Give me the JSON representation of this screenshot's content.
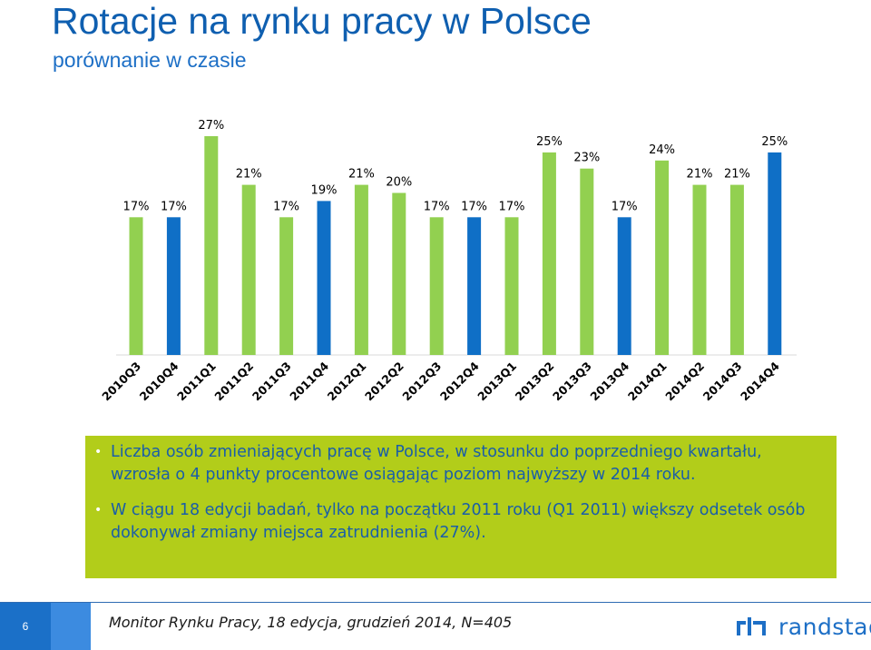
{
  "header": {
    "title": "Rotacje na rynku pracy w Polsce",
    "subtitle": "porównanie w czasie"
  },
  "chart_data": {
    "type": "bar",
    "categories": [
      "2010Q3",
      "2010Q4",
      "2011Q1",
      "2011Q2",
      "2011Q3",
      "2011Q4",
      "2012Q1",
      "2012Q2",
      "2012Q3",
      "2012Q4",
      "2013Q1",
      "2013Q2",
      "2013Q3",
      "2013Q4",
      "2014Q1",
      "2014Q2",
      "2014Q3",
      "2014Q4"
    ],
    "values": [
      17,
      17,
      27,
      21,
      17,
      19,
      21,
      20,
      17,
      17,
      17,
      25,
      23,
      17,
      24,
      21,
      21,
      25
    ],
    "data_labels": [
      "17%",
      "17%",
      "27%",
      "21%",
      "17%",
      "19%",
      "21%",
      "20%",
      "17%",
      "17%",
      "17%",
      "25%",
      "23%",
      "17%",
      "24%",
      "21%",
      "21%",
      "25%"
    ],
    "bar_colors": [
      "#92D050",
      "#0F6FC6",
      "#92D050",
      "#92D050",
      "#92D050",
      "#0F6FC6",
      "#92D050",
      "#92D050",
      "#92D050",
      "#0F6FC6",
      "#92D050",
      "#92D050",
      "#92D050",
      "#0F6FC6",
      "#92D050",
      "#92D050",
      "#92D050",
      "#0F6FC6"
    ],
    "ylim": [
      0,
      27
    ],
    "grid": false,
    "legend": "none",
    "title": "",
    "xlabel": "",
    "ylabel": ""
  },
  "bullets": [
    "Liczba osób zmieniających pracę w Polsce, w stosunku do poprzedniego kwartału, wzrosła o 4 punkty procentowe osiągając poziom najwyższy w 2014 roku.",
    "W ciągu 18 edycji badań, tylko na początku 2011 roku (Q1 2011) większy odsetek osób dokonywał zmiany miejsca zatrudnienia (27%)."
  ],
  "footer": {
    "page_number": "6",
    "source": "Monitor Rynku Pracy, 18 edycja, grudzień 2014, N=405",
    "logo_text": "randstad",
    "logo_icon": "randstad-logo-icon"
  },
  "colors": {
    "title": "#0F5FB0",
    "green_box": "#B2CD1A",
    "bullet_text": "#1A5EA8",
    "bar_green": "#92D050",
    "bar_blue": "#0F6FC6"
  }
}
